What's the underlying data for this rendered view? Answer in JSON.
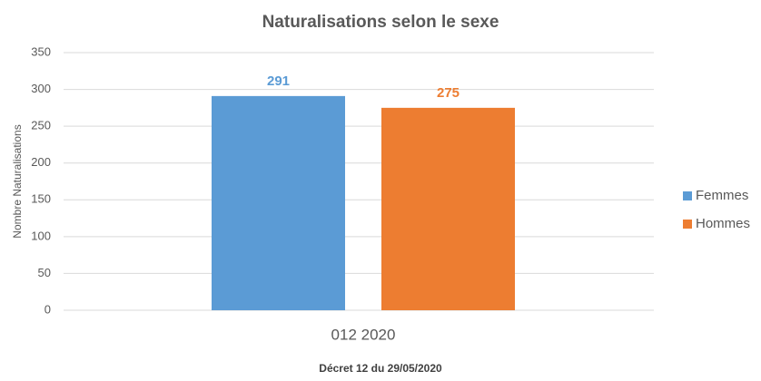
{
  "chart_data": {
    "type": "bar",
    "title": "Naturalisations selon le sexe",
    "footer": "Décret 12 du 29/05/2020",
    "y_label": "Nombre Naturalisations",
    "categories": [
      "012 2020"
    ],
    "series": [
      {
        "name": "Femmes",
        "color": "#5b9bd5",
        "values": [
          291
        ]
      },
      {
        "name": "Hommes",
        "color": "#ed7d31",
        "values": [
          275
        ]
      }
    ],
    "ylim": [
      0,
      350
    ],
    "yticks": [
      0,
      50,
      100,
      150,
      200,
      250,
      300,
      350
    ],
    "grid": true,
    "legend": "right",
    "data_labels": true
  }
}
